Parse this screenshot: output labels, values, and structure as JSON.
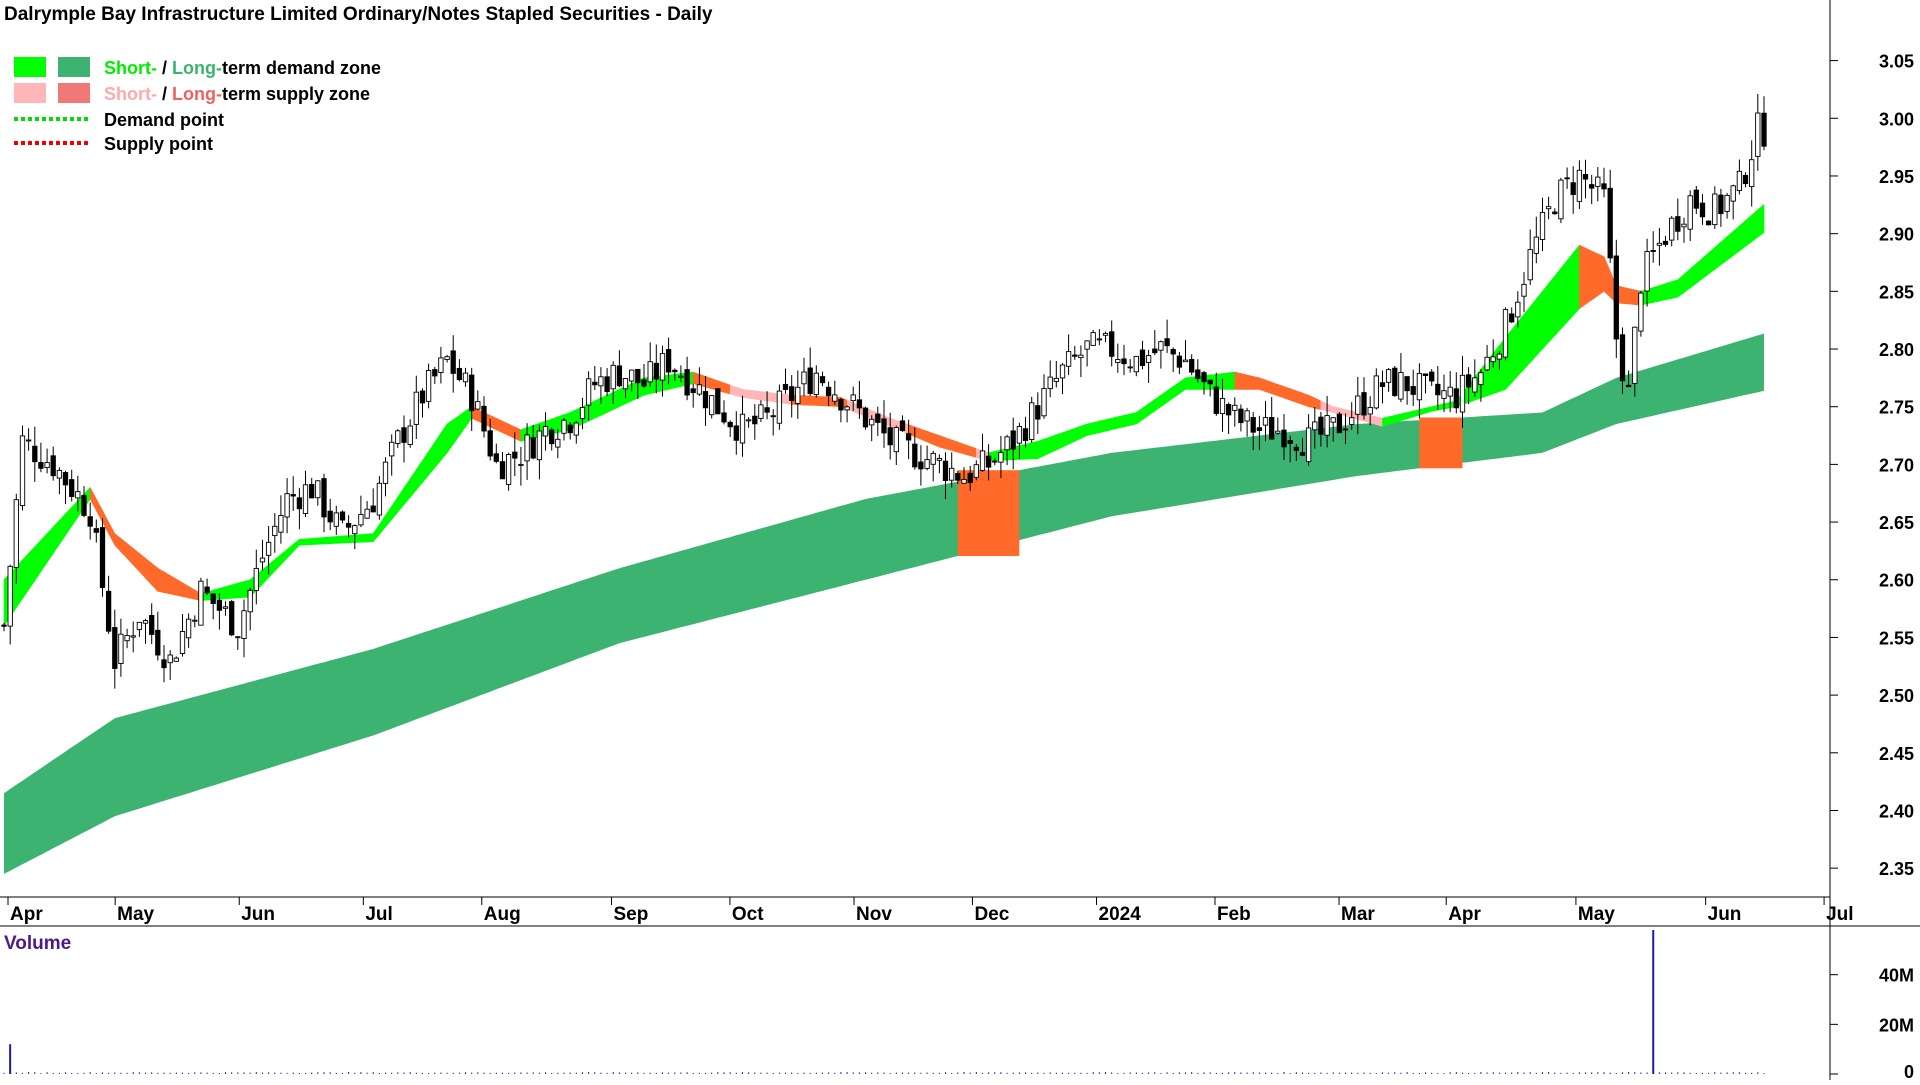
{
  "title": "Dalrymple Bay Infrastructure Limited Ordinary/Notes Stapled Securities - Daily",
  "legend": [
    {
      "short": "Short-",
      "sep": " / ",
      "long": "Long-",
      "rest": "term demand zone",
      "short_color": "#00ff00",
      "long_color": "#3cb371"
    },
    {
      "short": "Short-",
      "sep": " / ",
      "long": "Long-",
      "rest": "term supply zone",
      "short_color": "#ffb6b6",
      "long_color": "#f07878"
    },
    {
      "label": "Demand point",
      "color": "#00dd00"
    },
    {
      "label": "Supply point",
      "color": "#ee0000"
    }
  ],
  "volume_label": "Volume",
  "colors": {
    "long_demand": "#3cb371",
    "short_demand": "#00ff00",
    "supply_orange": "#ff6a2a",
    "supply_pink": "#ffb6b6",
    "candle": "#000000",
    "volume": "#1a1aaa",
    "title_text": "#000000",
    "volume_text": "#4b1a8a"
  },
  "chart_data": {
    "type": "candlestick",
    "y_axis": {
      "ticks": [
        "2.35",
        "2.40",
        "2.45",
        "2.50",
        "2.55",
        "2.60",
        "2.65",
        "2.70",
        "2.75",
        "2.80",
        "2.85",
        "2.90",
        "2.95",
        "3.00",
        "3.05"
      ],
      "ylim": [
        2.325,
        3.08
      ]
    },
    "x_axis": {
      "ticks": [
        "Apr",
        "May",
        "Jun",
        "Jul",
        "Aug",
        "Sep",
        "Oct",
        "Nov",
        "Dec",
        "2024",
        "Feb",
        "Mar",
        "Apr",
        "May",
        "Jun",
        "Jul"
      ]
    },
    "volume_axis": {
      "ticks": [
        "0",
        "20M",
        "40M"
      ],
      "ylim": [
        0,
        58
      ]
    },
    "close_points": [
      [
        0,
        2.56
      ],
      [
        3,
        2.72
      ],
      [
        8,
        2.7
      ],
      [
        14,
        2.66
      ],
      [
        18,
        2.53
      ],
      [
        22,
        2.57
      ],
      [
        27,
        2.53
      ],
      [
        32,
        2.59
      ],
      [
        38,
        2.56
      ],
      [
        42,
        2.62
      ],
      [
        46,
        2.67
      ],
      [
        50,
        2.68
      ],
      [
        55,
        2.64
      ],
      [
        60,
        2.67
      ],
      [
        64,
        2.72
      ],
      [
        68,
        2.76
      ],
      [
        72,
        2.79
      ],
      [
        76,
        2.76
      ],
      [
        80,
        2.7
      ],
      [
        84,
        2.71
      ],
      [
        88,
        2.73
      ],
      [
        92,
        2.74
      ],
      [
        96,
        2.77
      ],
      [
        100,
        2.78
      ],
      [
        104,
        2.77
      ],
      [
        108,
        2.79
      ],
      [
        112,
        2.77
      ],
      [
        116,
        2.75
      ],
      [
        120,
        2.73
      ],
      [
        124,
        2.74
      ],
      [
        128,
        2.76
      ],
      [
        132,
        2.78
      ],
      [
        136,
        2.76
      ],
      [
        140,
        2.74
      ],
      [
        144,
        2.72
      ],
      [
        148,
        2.71
      ],
      [
        152,
        2.7
      ],
      [
        156,
        2.69
      ],
      [
        160,
        2.7
      ],
      [
        164,
        2.72
      ],
      [
        168,
        2.75
      ],
      [
        172,
        2.78
      ],
      [
        176,
        2.8
      ],
      [
        180,
        2.8
      ],
      [
        184,
        2.79
      ],
      [
        188,
        2.8
      ],
      [
        192,
        2.79
      ],
      [
        196,
        2.76
      ],
      [
        200,
        2.74
      ],
      [
        204,
        2.73
      ],
      [
        208,
        2.73
      ],
      [
        212,
        2.72
      ],
      [
        216,
        2.73
      ],
      [
        220,
        2.75
      ],
      [
        224,
        2.77
      ],
      [
        228,
        2.77
      ],
      [
        232,
        2.76
      ],
      [
        236,
        2.76
      ],
      [
        240,
        2.78
      ],
      [
        244,
        2.82
      ],
      [
        248,
        2.88
      ],
      [
        252,
        2.93
      ],
      [
        256,
        2.95
      ],
      [
        260,
        2.93
      ],
      [
        262,
        2.81
      ],
      [
        264,
        2.76
      ],
      [
        266,
        2.86
      ],
      [
        270,
        2.9
      ],
      [
        274,
        2.93
      ],
      [
        278,
        2.92
      ],
      [
        282,
        2.94
      ],
      [
        285,
        2.99
      ]
    ],
    "n_days": 287,
    "long_demand_band": {
      "top": [
        [
          0,
          2.415
        ],
        [
          18,
          2.48
        ],
        [
          60,
          2.54
        ],
        [
          100,
          2.61
        ],
        [
          140,
          2.67
        ],
        [
          180,
          2.71
        ],
        [
          220,
          2.735
        ],
        [
          250,
          2.745
        ],
        [
          262,
          2.775
        ],
        [
          287,
          2.815
        ]
      ],
      "bottom": [
        [
          0,
          2.345
        ],
        [
          18,
          2.395
        ],
        [
          60,
          2.465
        ],
        [
          100,
          2.545
        ],
        [
          140,
          2.6
        ],
        [
          180,
          2.655
        ],
        [
          220,
          2.69
        ],
        [
          250,
          2.71
        ],
        [
          262,
          2.735
        ],
        [
          287,
          2.765
        ]
      ]
    },
    "short_zone": {
      "top": [
        [
          0,
          2.6
        ],
        [
          14,
          2.68
        ],
        [
          18,
          2.64
        ],
        [
          25,
          2.61
        ],
        [
          32,
          2.588
        ],
        [
          40,
          2.6
        ],
        [
          48,
          2.635
        ],
        [
          60,
          2.64
        ],
        [
          72,
          2.735
        ],
        [
          76,
          2.75
        ],
        [
          84,
          2.73
        ],
        [
          92,
          2.745
        ],
        [
          104,
          2.775
        ],
        [
          112,
          2.78
        ],
        [
          120,
          2.765
        ],
        [
          128,
          2.76
        ],
        [
          136,
          2.758
        ],
        [
          144,
          2.74
        ],
        [
          152,
          2.725
        ],
        [
          160,
          2.71
        ],
        [
          168,
          2.72
        ],
        [
          176,
          2.735
        ],
        [
          184,
          2.745
        ],
        [
          192,
          2.775
        ],
        [
          200,
          2.78
        ],
        [
          204,
          2.775
        ],
        [
          212,
          2.76
        ],
        [
          216,
          2.75
        ],
        [
          224,
          2.74
        ],
        [
          232,
          2.75
        ],
        [
          236,
          2.755
        ],
        [
          244,
          2.81
        ],
        [
          256,
          2.89
        ],
        [
          260,
          2.88
        ],
        [
          262,
          2.855
        ],
        [
          266,
          2.85
        ],
        [
          272,
          2.86
        ],
        [
          287,
          2.93
        ]
      ],
      "bottom": [
        [
          0,
          2.56
        ],
        [
          14,
          2.67
        ],
        [
          18,
          2.63
        ],
        [
          25,
          2.59
        ],
        [
          32,
          2.582
        ],
        [
          40,
          2.585
        ],
        [
          48,
          2.63
        ],
        [
          60,
          2.633
        ],
        [
          72,
          2.71
        ],
        [
          76,
          2.74
        ],
        [
          84,
          2.72
        ],
        [
          92,
          2.73
        ],
        [
          104,
          2.76
        ],
        [
          112,
          2.77
        ],
        [
          120,
          2.758
        ],
        [
          128,
          2.752
        ],
        [
          136,
          2.75
        ],
        [
          144,
          2.733
        ],
        [
          152,
          2.715
        ],
        [
          160,
          2.703
        ],
        [
          168,
          2.705
        ],
        [
          176,
          2.725
        ],
        [
          184,
          2.735
        ],
        [
          192,
          2.765
        ],
        [
          200,
          2.765
        ],
        [
          204,
          2.765
        ],
        [
          212,
          2.75
        ],
        [
          216,
          2.745
        ],
        [
          224,
          2.733
        ],
        [
          232,
          2.746
        ],
        [
          236,
          2.75
        ],
        [
          244,
          2.765
        ],
        [
          256,
          2.835
        ],
        [
          260,
          2.85
        ],
        [
          262,
          2.84
        ],
        [
          266,
          2.838
        ],
        [
          272,
          2.845
        ],
        [
          287,
          2.905
        ]
      ]
    },
    "vol_spikes": [
      [
        1,
        12
      ],
      [
        268,
        58
      ]
    ]
  }
}
